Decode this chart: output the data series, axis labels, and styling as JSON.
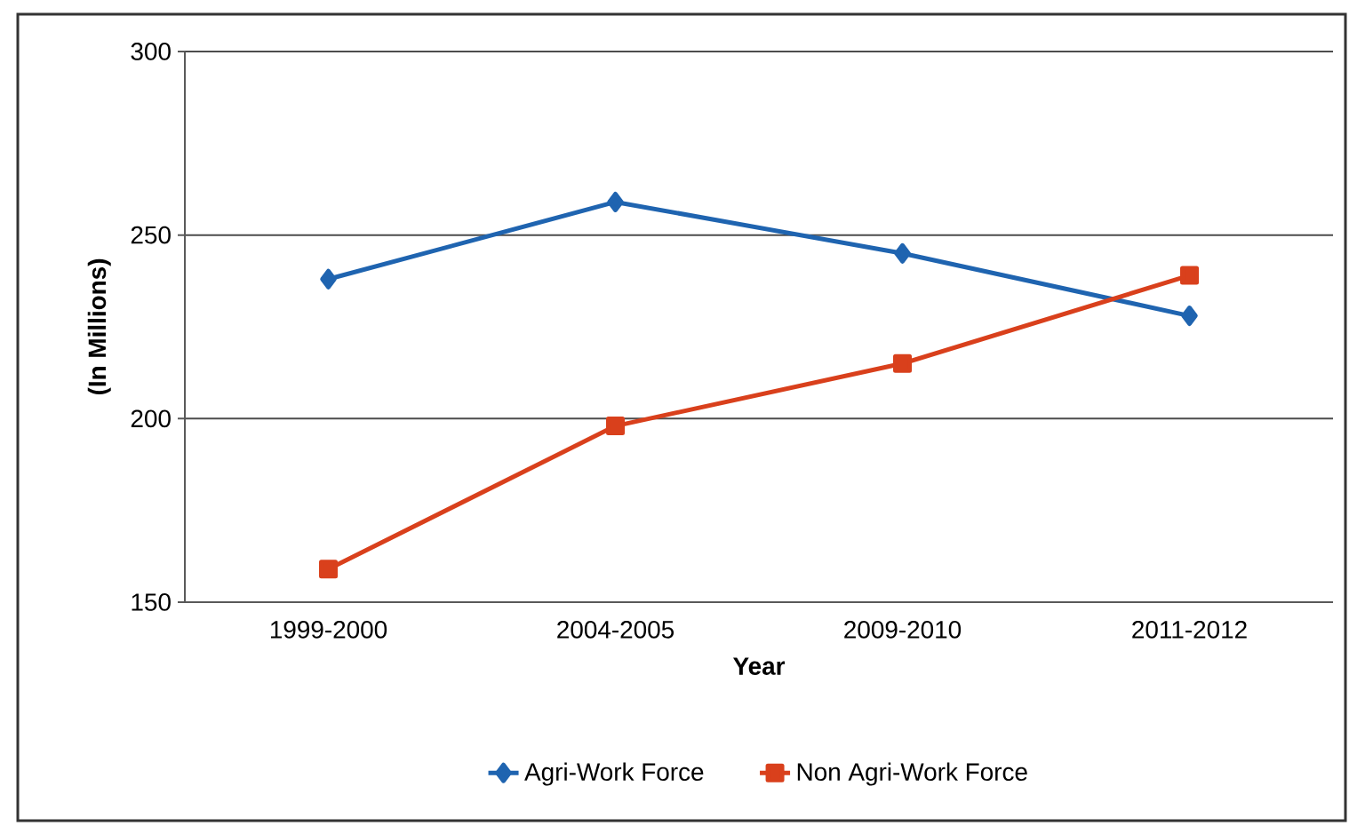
{
  "chart_data": {
    "type": "line",
    "xlabel": "Year",
    "ylabel": "(In Millions)",
    "categories": [
      "1999-2000",
      "2004-2005",
      "2009-2010",
      "2011-2012"
    ],
    "series": [
      {
        "name": "Agri-Work Force",
        "color": "#1f64b0",
        "marker": "diamond",
        "values": [
          238,
          259,
          245,
          228
        ]
      },
      {
        "name": "Non Agri-Work Force",
        "color": "#d9401c",
        "marker": "square",
        "values": [
          159,
          198,
          215,
          239
        ]
      }
    ],
    "ylim": [
      150,
      300
    ],
    "yticks": [
      150,
      200,
      250,
      300
    ],
    "grid": "y",
    "legend": "bottom"
  }
}
